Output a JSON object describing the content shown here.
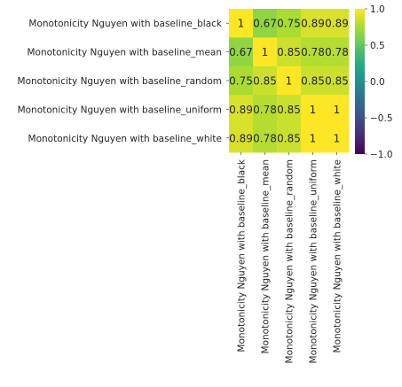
{
  "chart_data": {
    "type": "heatmap",
    "title": "",
    "xlabel": "",
    "ylabel": "",
    "rows": [
      "Monotonicity Nguyen with baseline_black",
      "Monotonicity Nguyen with baseline_mean",
      "Monotonicity Nguyen with baseline_random",
      "Monotonicity Nguyen with baseline_uniform",
      "Monotonicity Nguyen with baseline_white"
    ],
    "columns": [
      "Monotonicity Nguyen with baseline_black",
      "Monotonicity Nguyen with baseline_mean",
      "Monotonicity Nguyen with baseline_random",
      "Monotonicity Nguyen with baseline_uniform",
      "Monotonicity Nguyen with baseline_white"
    ],
    "values": [
      [
        1,
        0.67,
        0.75,
        0.89,
        0.89
      ],
      [
        0.67,
        1,
        0.85,
        0.78,
        0.78
      ],
      [
        0.75,
        0.85,
        1,
        0.85,
        0.85
      ],
      [
        0.89,
        0.78,
        0.85,
        1,
        1
      ],
      [
        0.89,
        0.78,
        0.85,
        1,
        1
      ]
    ],
    "annotations": [
      [
        "1",
        "0.67",
        "0.75",
        "0.89",
        "0.89"
      ],
      [
        "0.67",
        "1",
        "0.85",
        "0.78",
        "0.78"
      ],
      [
        "0.75",
        "0.85",
        "1",
        "0.85",
        "0.85"
      ],
      [
        "0.89",
        "0.78",
        "0.85",
        "1",
        "1"
      ],
      [
        "0.89",
        "0.78",
        "0.85",
        "1",
        "1"
      ]
    ],
    "colormap": "viridis",
    "vmin": -1,
    "vmax": 1,
    "colorbar_ticks": [
      1.0,
      0.5,
      0.0,
      -0.5,
      -1.0
    ],
    "colorbar_tick_labels": [
      "1.0",
      "0.5",
      "0.0",
      "−0.5",
      "−1.0"
    ],
    "grid": false,
    "legend": "colorbar-right"
  }
}
